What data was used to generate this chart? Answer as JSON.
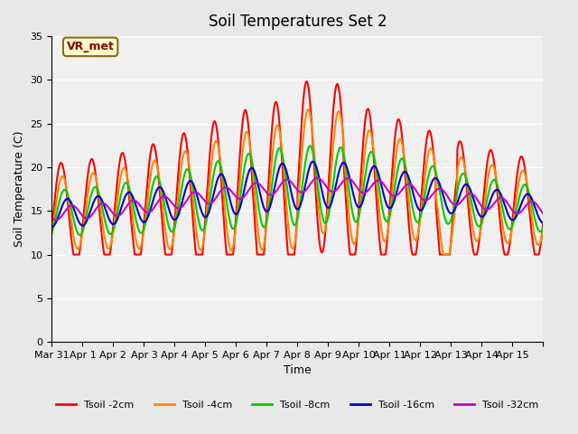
{
  "title": "Soil Temperatures Set 2",
  "xlabel": "Time",
  "ylabel": "Soil Temperature (C)",
  "ylim": [
    0,
    35
  ],
  "yticks": [
    0,
    5,
    10,
    15,
    20,
    25,
    30,
    35
  ],
  "background_color": "#e8e8e8",
  "annotation_text": "VR_met",
  "annotation_color": "#8B0000",
  "annotation_bg": "#ffffcc",
  "colors": {
    "Tsoil -2cm": "#ff0000",
    "Tsoil -4cm": "#ff8800",
    "Tsoil -8cm": "#00cc00",
    "Tsoil -16cm": "#0000cc",
    "Tsoil -32cm": "#cc00cc"
  },
  "xtick_positions": [
    0,
    1,
    2,
    3,
    4,
    5,
    6,
    7,
    8,
    9,
    10,
    11,
    12,
    13,
    14,
    15,
    16
  ],
  "xtick_labels": [
    "Mar 31",
    "Apr 1",
    "Apr 2",
    "Apr 3",
    "Apr 4",
    "Apr 5",
    "Apr 6",
    "Apr 7",
    "Apr 8",
    "Apr 9",
    "Apr 10",
    "Apr 11",
    "Apr 12",
    "Apr 13",
    "Apr 14",
    "Apr 15",
    ""
  ],
  "line_width": 1.5,
  "legend_labels": [
    "Tsoil -2cm",
    "Tsoil -4cm",
    "Tsoil -8cm",
    "Tsoil -16cm",
    "Tsoil -32cm"
  ]
}
